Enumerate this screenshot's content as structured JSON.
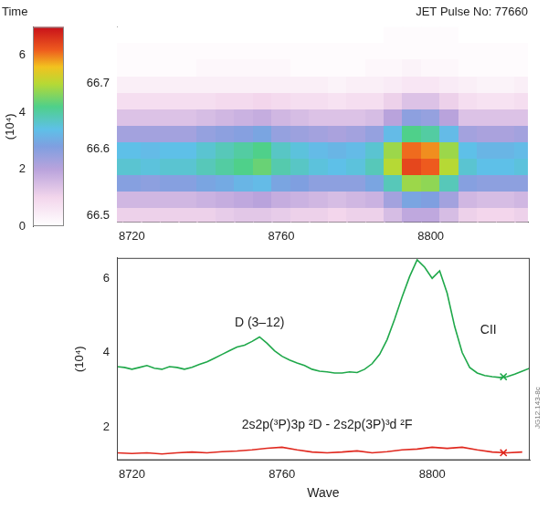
{
  "chart_data": [
    {
      "type": "heatmap",
      "title": "JET Pulse No: 77660",
      "xlim": [
        8716,
        8826
      ],
      "xticks": [
        8720,
        8760,
        8800
      ],
      "ylim": [
        66.49,
        66.785
      ],
      "yticks": [
        66.5,
        66.6,
        66.7
      ],
      "grid": false,
      "cells": {
        "x": [
          8715,
          8720,
          8725,
          8730,
          8735,
          8740,
          8745,
          8750,
          8755,
          8760,
          8765,
          8770,
          8775,
          8780,
          8785,
          8790,
          8795,
          8800,
          8805,
          8810,
          8815,
          8820,
          8825
        ],
        "y": [
          66.5,
          66.525,
          66.55,
          66.575,
          66.6,
          66.625,
          66.65,
          66.675,
          66.7,
          66.725,
          66.75,
          66.775
        ],
        "values": [
          [
            1.1,
            1.6,
            2.7,
            3.6,
            3.4,
            2.3,
            1.4,
            0.8,
            0.4,
            0.1,
            0.1,
            0
          ],
          [
            1.1,
            1.6,
            2.7,
            3.6,
            3.4,
            2.3,
            1.4,
            0.8,
            0.4,
            0.1,
            0.1,
            0
          ],
          [
            1.1,
            1.6,
            2.6,
            3.5,
            3.3,
            2.3,
            1.4,
            0.8,
            0.4,
            0.1,
            0.1,
            0
          ],
          [
            1.1,
            1.6,
            2.7,
            3.6,
            3.4,
            2.3,
            1.4,
            0.8,
            0.4,
            0.1,
            0.1,
            0
          ],
          [
            1.1,
            1.6,
            2.7,
            3.6,
            3.4,
            2.3,
            1.4,
            0.8,
            0.4,
            0.1,
            0.1,
            0
          ],
          [
            1.1,
            1.7,
            2.9,
            3.8,
            3.6,
            2.5,
            1.5,
            0.8,
            0.4,
            0.2,
            0.1,
            0
          ],
          [
            1.2,
            1.8,
            3.0,
            4.0,
            3.8,
            2.6,
            1.6,
            0.9,
            0.4,
            0.2,
            0.1,
            0
          ],
          [
            1.3,
            1.9,
            3.2,
            4.2,
            4.0,
            2.7,
            1.7,
            0.9,
            0.4,
            0.2,
            0.1,
            0
          ],
          [
            1.3,
            2.0,
            3.3,
            4.4,
            4.2,
            2.9,
            1.8,
            1.0,
            0.4,
            0.2,
            0.1,
            0
          ],
          [
            1.2,
            1.8,
            2.9,
            3.9,
            3.7,
            2.5,
            1.6,
            0.9,
            0.4,
            0.2,
            0.1,
            0
          ],
          [
            1.1,
            1.7,
            2.8,
            3.7,
            3.5,
            2.4,
            1.5,
            0.8,
            0.4,
            0.1,
            0.1,
            0
          ],
          [
            1.1,
            1.6,
            2.6,
            3.5,
            3.3,
            2.3,
            1.4,
            0.8,
            0.4,
            0.1,
            0.1,
            0
          ],
          [
            1.0,
            1.5,
            2.6,
            3.4,
            3.2,
            2.2,
            1.4,
            0.7,
            0.3,
            0.1,
            0.1,
            0
          ],
          [
            1.1,
            1.6,
            2.6,
            3.5,
            3.3,
            2.3,
            1.4,
            0.8,
            0.4,
            0.1,
            0.1,
            0
          ],
          [
            1.1,
            1.7,
            2.9,
            3.8,
            3.6,
            2.5,
            1.5,
            0.8,
            0.4,
            0.2,
            0.1,
            0
          ],
          [
            1.5,
            2.3,
            3.8,
            5.0,
            4.8,
            3.3,
            2.0,
            1.1,
            0.5,
            0.2,
            0.1,
            0.1
          ],
          [
            1.9,
            2.9,
            4.8,
            6.4,
            6.1,
            4.2,
            2.6,
            1.4,
            0.6,
            0.3,
            0.1,
            0.1
          ],
          [
            1.9,
            2.8,
            4.7,
            6.2,
            5.9,
            4.0,
            2.5,
            1.4,
            0.6,
            0.2,
            0.1,
            0.1
          ],
          [
            1.5,
            2.3,
            3.8,
            5.0,
            4.8,
            3.3,
            2.0,
            1.1,
            0.5,
            0.2,
            0.1,
            0.1
          ],
          [
            1.1,
            1.6,
            2.7,
            3.6,
            3.4,
            2.3,
            1.4,
            0.8,
            0.4,
            0.1,
            0.1,
            0
          ],
          [
            1.0,
            1.5,
            2.6,
            3.4,
            3.2,
            2.2,
            1.4,
            0.7,
            0.3,
            0.1,
            0.1,
            0
          ],
          [
            1.0,
            1.5,
            2.6,
            3.4,
            3.2,
            2.2,
            1.4,
            0.7,
            0.3,
            0.1,
            0.1,
            0
          ],
          [
            1.1,
            1.6,
            2.6,
            3.5,
            3.3,
            2.3,
            1.4,
            0.8,
            0.4,
            0.1,
            0.1,
            0
          ]
        ]
      },
      "colorbar": {
        "title": "Time",
        "label": "(10⁴)",
        "range": [
          0,
          7
        ],
        "ticks": [
          0,
          2,
          4,
          6
        ]
      }
    },
    {
      "type": "line",
      "xlabel": "Wave",
      "ylabel": "(10⁴)",
      "xlim": [
        8716,
        8826
      ],
      "xticks": [
        8720,
        8760,
        8800
      ],
      "ylim": [
        1.1,
        6.55
      ],
      "yticks": [
        2,
        4,
        6
      ],
      "grid": false,
      "series": [
        {
          "color": "#1fa84a",
          "line_style": "solid",
          "x": [
            8716,
            8718,
            8720,
            8722,
            8724,
            8726,
            8728,
            8730,
            8732,
            8734,
            8736,
            8738,
            8740,
            8742,
            8744,
            8746,
            8748,
            8750,
            8752,
            8754,
            8756,
            8758,
            8760,
            8762,
            8764,
            8766,
            8768,
            8770,
            8772,
            8774,
            8776,
            8778,
            8780,
            8782,
            8784,
            8786,
            8788,
            8790,
            8792,
            8794,
            8796,
            8798,
            8800,
            8802,
            8804,
            8806,
            8808,
            8810,
            8812,
            8814,
            8816,
            8818,
            8820,
            8822,
            8824,
            8826
          ],
          "values": [
            3.62,
            3.6,
            3.55,
            3.6,
            3.65,
            3.58,
            3.55,
            3.62,
            3.6,
            3.55,
            3.6,
            3.68,
            3.75,
            3.85,
            3.95,
            4.05,
            4.15,
            4.2,
            4.3,
            4.42,
            4.25,
            4.05,
            3.9,
            3.8,
            3.72,
            3.65,
            3.55,
            3.5,
            3.48,
            3.45,
            3.45,
            3.48,
            3.46,
            3.55,
            3.7,
            3.95,
            4.35,
            4.9,
            5.5,
            6.05,
            6.5,
            6.3,
            6.0,
            6.2,
            5.6,
            4.7,
            4.0,
            3.6,
            3.45,
            3.38,
            3.35,
            3.33,
            3.35,
            3.42,
            3.5,
            3.58
          ]
        },
        {
          "color": "#e0281e",
          "line_style": "solid",
          "x": [
            8716,
            8720,
            8724,
            8728,
            8732,
            8736,
            8740,
            8744,
            8748,
            8752,
            8756,
            8760,
            8764,
            8768,
            8772,
            8776,
            8780,
            8784,
            8788,
            8792,
            8796,
            8800,
            8804,
            8808,
            8812,
            8816,
            8820,
            8824
          ],
          "values": [
            1.3,
            1.28,
            1.3,
            1.27,
            1.3,
            1.32,
            1.3,
            1.33,
            1.35,
            1.38,
            1.42,
            1.45,
            1.38,
            1.32,
            1.3,
            1.32,
            1.35,
            1.3,
            1.33,
            1.38,
            1.4,
            1.45,
            1.42,
            1.45,
            1.38,
            1.32,
            1.3,
            1.32
          ]
        },
        {
          "color": "#1fa84a",
          "marker": "x",
          "x": [
            8819
          ],
          "values": [
            3.35
          ]
        },
        {
          "color": "#e0281e",
          "marker": "x",
          "x": [
            8819
          ],
          "values": [
            1.3
          ]
        }
      ],
      "annotations": [
        {
          "text": "D (3–12)",
          "x": 8754,
          "y": 4.8
        },
        {
          "text": "CII",
          "x": 8815,
          "y": 4.6
        },
        {
          "text": "2s2p(³P)3p ²D - 2s2p(3P)³d ²F",
          "x": 8772,
          "y": 2.05
        },
        {
          "text": "JG12.143-8c"
        }
      ]
    }
  ]
}
